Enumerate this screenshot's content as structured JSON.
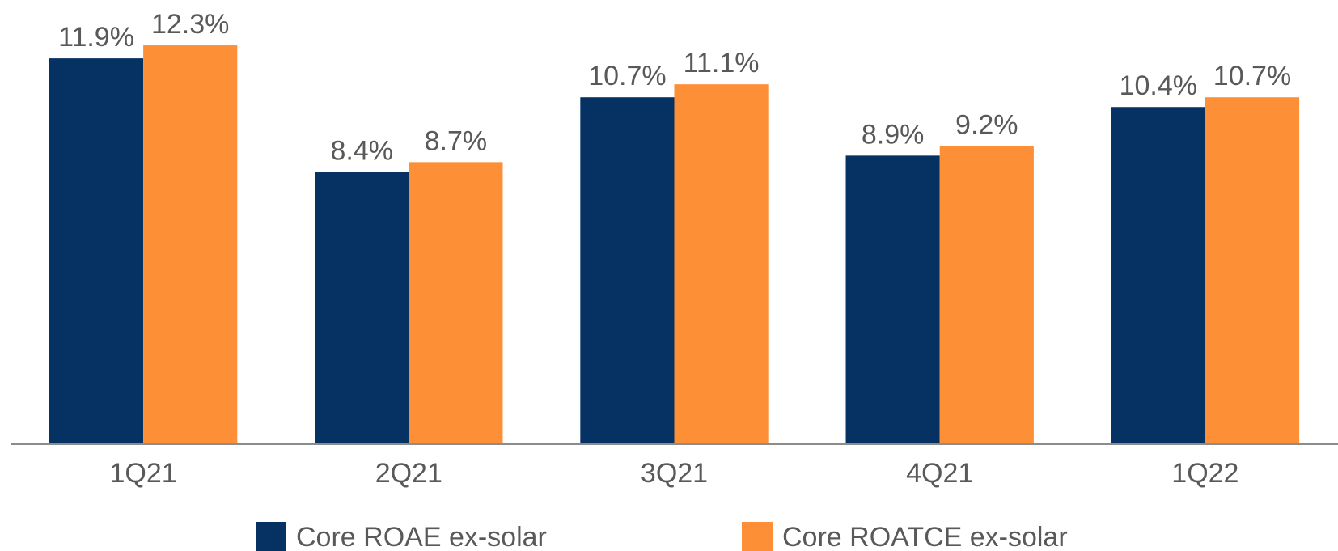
{
  "chart_data": {
    "type": "bar",
    "categories": [
      "1Q21",
      "2Q21",
      "3Q21",
      "4Q21",
      "1Q22"
    ],
    "series": [
      {
        "name": "Core ROAE ex-solar",
        "color": "#063263",
        "values": [
          11.9,
          8.4,
          10.7,
          8.9,
          10.4
        ],
        "value_labels": [
          "11.9%",
          "8.4%",
          "10.7%",
          "8.9%",
          "10.4%"
        ]
      },
      {
        "name": "Core ROATCE ex-solar",
        "color": "#fd8f37",
        "values": [
          12.3,
          8.7,
          11.1,
          9.2,
          10.7
        ],
        "value_labels": [
          "12.3%",
          "8.7%",
          "11.1%",
          "9.2%",
          "10.7%"
        ]
      }
    ],
    "ylim": [
      0,
      13.5
    ],
    "grid": false,
    "legend": "bottom"
  }
}
